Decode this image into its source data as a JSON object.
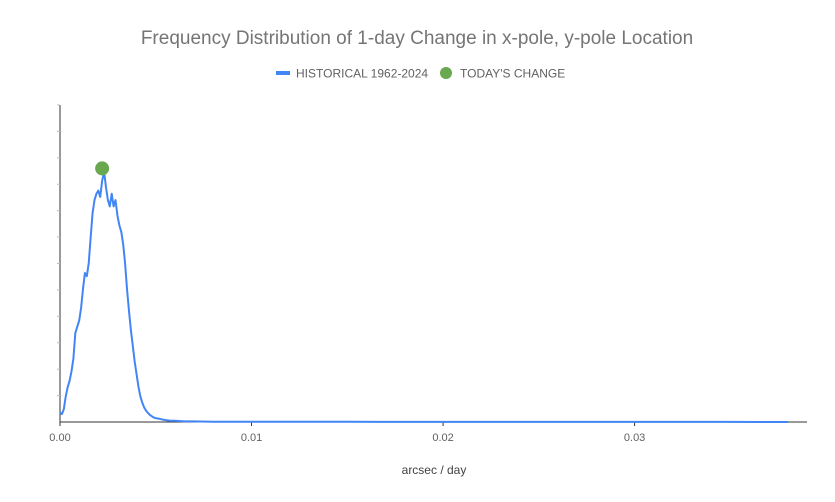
{
  "chart_data": {
    "type": "line",
    "title": "Frequency Distribution of 1-day Change in x-pole, y-pole Location",
    "xlabel": "arcsec / day",
    "ylabel": "",
    "xlim": [
      0,
      0.039
    ],
    "ylim": [
      0,
      1.0
    ],
    "x_ticks": [
      0,
      0.01,
      0.02,
      0.03
    ],
    "x_tick_labels": [
      "0.00",
      "0.01",
      "0.02",
      "0.03"
    ],
    "legend_position": "top-center",
    "colors": {
      "historical": "#4285f4",
      "today": "#6aa84f",
      "axis": "#333333"
    },
    "series": [
      {
        "name": "HISTORICAL 1962-2024",
        "type": "line",
        "points": [
          [
            0.0,
            0.03
          ],
          [
            0.0001,
            0.025
          ],
          [
            0.0002,
            0.04
          ],
          [
            0.0003,
            0.08
          ],
          [
            0.0004,
            0.11
          ],
          [
            0.0005,
            0.13
          ],
          [
            0.0006,
            0.16
          ],
          [
            0.0007,
            0.2
          ],
          [
            0.0008,
            0.28
          ],
          [
            0.0009,
            0.3
          ],
          [
            0.001,
            0.32
          ],
          [
            0.0011,
            0.36
          ],
          [
            0.0012,
            0.42
          ],
          [
            0.0013,
            0.47
          ],
          [
            0.0014,
            0.46
          ],
          [
            0.0015,
            0.5
          ],
          [
            0.0016,
            0.58
          ],
          [
            0.0017,
            0.66
          ],
          [
            0.0018,
            0.7
          ],
          [
            0.0019,
            0.72
          ],
          [
            0.002,
            0.73
          ],
          [
            0.0021,
            0.71
          ],
          [
            0.0022,
            0.76
          ],
          [
            0.0023,
            0.79
          ],
          [
            0.0024,
            0.74
          ],
          [
            0.0025,
            0.7
          ],
          [
            0.0026,
            0.68
          ],
          [
            0.0027,
            0.72
          ],
          [
            0.0028,
            0.68
          ],
          [
            0.0029,
            0.7
          ],
          [
            0.003,
            0.65
          ],
          [
            0.0031,
            0.62
          ],
          [
            0.0032,
            0.6
          ],
          [
            0.0033,
            0.56
          ],
          [
            0.0034,
            0.5
          ],
          [
            0.0035,
            0.42
          ],
          [
            0.0036,
            0.35
          ],
          [
            0.0037,
            0.29
          ],
          [
            0.0038,
            0.24
          ],
          [
            0.0039,
            0.19
          ],
          [
            0.004,
            0.15
          ],
          [
            0.0041,
            0.11
          ],
          [
            0.0042,
            0.08
          ],
          [
            0.0043,
            0.06
          ],
          [
            0.0044,
            0.045
          ],
          [
            0.0045,
            0.035
          ],
          [
            0.0046,
            0.028
          ],
          [
            0.0047,
            0.022
          ],
          [
            0.0048,
            0.018
          ],
          [
            0.0049,
            0.014
          ],
          [
            0.005,
            0.012
          ],
          [
            0.0052,
            0.01
          ],
          [
            0.0054,
            0.007
          ],
          [
            0.0056,
            0.005
          ],
          [
            0.0058,
            0.004
          ],
          [
            0.006,
            0.004
          ],
          [
            0.0062,
            0.003
          ],
          [
            0.0065,
            0.002
          ],
          [
            0.007,
            0.002
          ],
          [
            0.008,
            0.001
          ],
          [
            0.01,
            0.0008
          ],
          [
            0.015,
            0.0005
          ],
          [
            0.02,
            0.0004
          ],
          [
            0.025,
            0.0003
          ],
          [
            0.03,
            0.0002
          ],
          [
            0.035,
            0.0002
          ],
          [
            0.038,
            0.0001
          ]
        ]
      },
      {
        "name": "TODAY'S CHANGE",
        "type": "scatter",
        "points": [
          [
            0.0022,
            0.8
          ]
        ]
      }
    ]
  }
}
